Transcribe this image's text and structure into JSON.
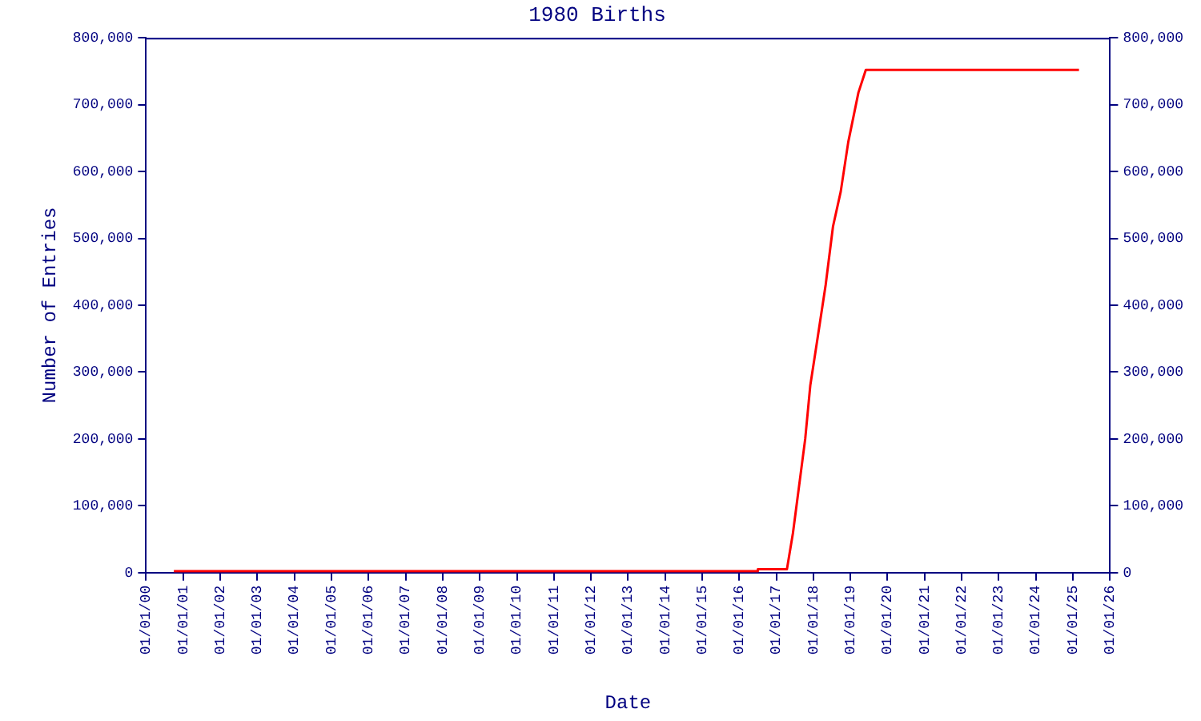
{
  "chart_data": {
    "type": "line",
    "title": "1980 Births",
    "xlabel": "Date",
    "ylabel": "Number of Entries",
    "x": [
      "2000-10-01",
      "2016-07-01",
      "2016-07-02",
      "2017-04-15",
      "2017-06-13",
      "2017-10-12",
      "2017-12-01",
      "2018-02-15",
      "2018-05-01",
      "2018-07-13",
      "2018-09-27",
      "2018-12-10",
      "2019-03-20",
      "2019-06-01",
      "2025-03-01"
    ],
    "series": [
      {
        "color": "#ff0000",
        "values": [
          2000,
          2000,
          5000,
          5000,
          59000,
          200000,
          280000,
          355000,
          430000,
          518000,
          570000,
          644000,
          718000,
          752000,
          752000
        ]
      }
    ],
    "xlim": [
      "2000-01-01",
      "2026-01-01"
    ],
    "xticks": [
      {
        "value": "2000-01-01",
        "label": "01/01/00"
      },
      {
        "value": "2001-01-01",
        "label": "01/01/01"
      },
      {
        "value": "2002-01-01",
        "label": "01/01/02"
      },
      {
        "value": "2003-01-01",
        "label": "01/01/03"
      },
      {
        "value": "2004-01-01",
        "label": "01/01/04"
      },
      {
        "value": "2005-01-01",
        "label": "01/01/05"
      },
      {
        "value": "2006-01-01",
        "label": "01/01/06"
      },
      {
        "value": "2007-01-01",
        "label": "01/01/07"
      },
      {
        "value": "2008-01-01",
        "label": "01/01/08"
      },
      {
        "value": "2009-01-01",
        "label": "01/01/09"
      },
      {
        "value": "2010-01-01",
        "label": "01/01/10"
      },
      {
        "value": "2011-01-01",
        "label": "01/01/11"
      },
      {
        "value": "2012-01-01",
        "label": "01/01/12"
      },
      {
        "value": "2013-01-01",
        "label": "01/01/13"
      },
      {
        "value": "2014-01-01",
        "label": "01/01/14"
      },
      {
        "value": "2015-01-01",
        "label": "01/01/15"
      },
      {
        "value": "2016-01-01",
        "label": "01/01/16"
      },
      {
        "value": "2017-01-01",
        "label": "01/01/17"
      },
      {
        "value": "2018-01-01",
        "label": "01/01/18"
      },
      {
        "value": "2019-01-01",
        "label": "01/01/19"
      },
      {
        "value": "2020-01-01",
        "label": "01/01/20"
      },
      {
        "value": "2021-01-01",
        "label": "01/01/21"
      },
      {
        "value": "2022-01-01",
        "label": "01/01/22"
      },
      {
        "value": "2023-01-01",
        "label": "01/01/23"
      },
      {
        "value": "2024-01-01",
        "label": "01/01/24"
      },
      {
        "value": "2025-01-01",
        "label": "01/01/25"
      },
      {
        "value": "2026-01-01",
        "label": "01/01/26"
      }
    ],
    "ylim": [
      0,
      800000
    ],
    "yticks": [
      0,
      {
        "value": 100000,
        "label": "100,000"
      },
      {
        "value": 200000,
        "label": "200,000"
      },
      {
        "value": 300000,
        "label": "300,000"
      },
      {
        "value": 400000,
        "label": "400,000"
      },
      {
        "value": 500000,
        "label": "500,000"
      },
      {
        "value": 600000,
        "label": "600,000"
      },
      {
        "value": 700000,
        "label": "700,000"
      },
      {
        "value": 800000,
        "label": "800,000"
      }
    ],
    "y2lim": [
      0,
      800000
    ],
    "y2ticks": [
      0,
      {
        "value": 100000,
        "label": "100,000"
      },
      {
        "value": 200000,
        "label": "200,000"
      },
      {
        "value": 300000,
        "label": "300,000"
      },
      {
        "value": 400000,
        "label": "400,000"
      },
      {
        "value": 500000,
        "label": "500,000"
      },
      {
        "value": 600000,
        "label": "600,000"
      },
      {
        "value": 700000,
        "label": "700,000"
      },
      {
        "value": 800000,
        "label": "800,000"
      }
    ],
    "legend": false,
    "marker": "none",
    "line_style": "solid"
  }
}
